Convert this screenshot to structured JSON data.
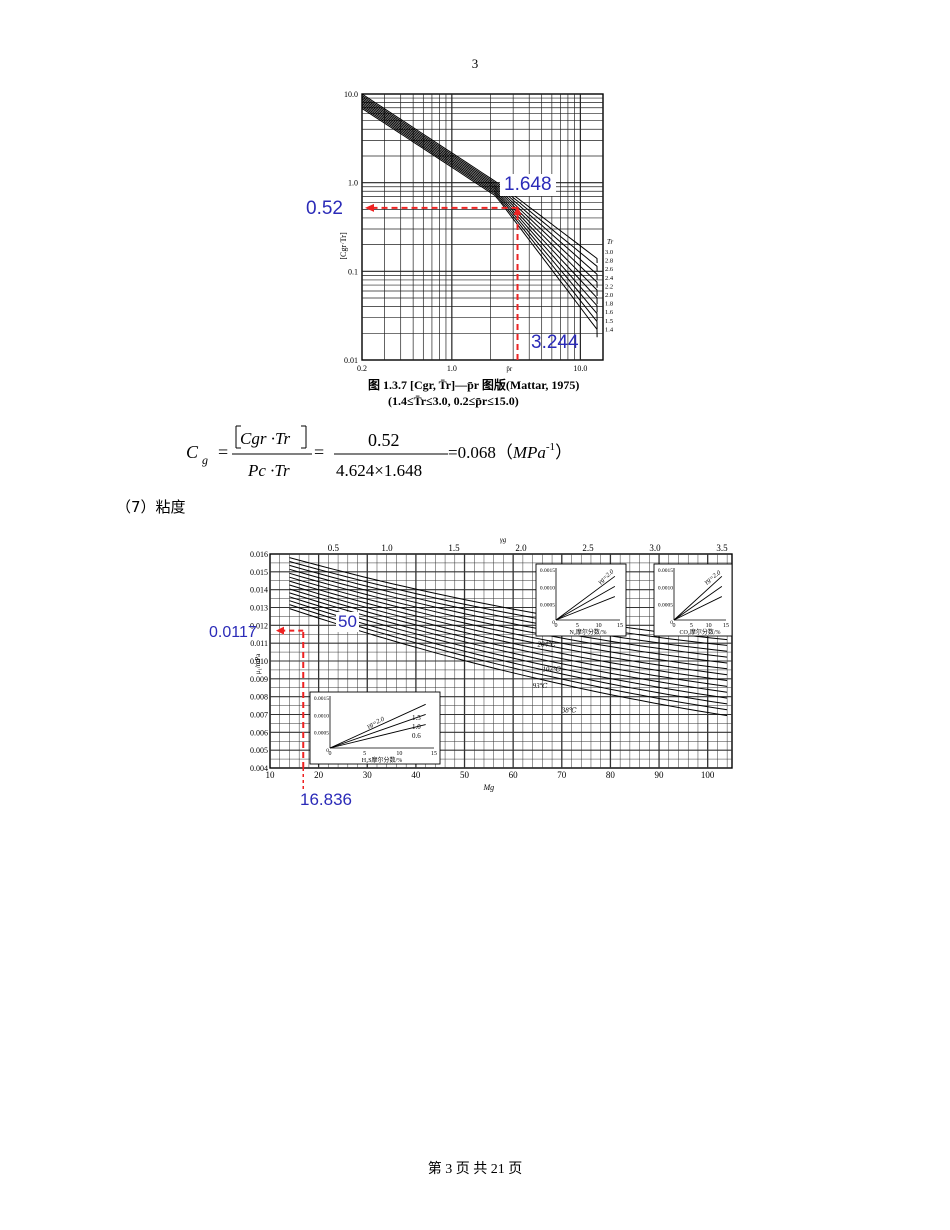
{
  "page_number": "3",
  "footer": "第 3 页 共 21 页",
  "chart1": {
    "y_ticks": [
      "10.0",
      "1.0",
      "0.1",
      "0.01"
    ],
    "x_ticks": [
      "0.2",
      "1.0",
      "10.0"
    ],
    "ylabel": "[Cgr·Tr]",
    "xlabel": "p̄r",
    "tr_header": "Tr",
    "tr_values": [
      "3.0",
      "2.8",
      "2.6",
      "2.4",
      "2.2",
      "2.0",
      "1.8",
      "1.6",
      "1.5",
      "1.4"
    ],
    "caption_line1": "图 1.3.7  [Cgr, T̄r]—p̄r 图版(Mattar, 1975)",
    "caption_line2": "(1.4≤T̄r≤3.0, 0.2≤p̄r≤15.0)",
    "ann_y": "0.52",
    "ann_tr": "1.648",
    "ann_x": "3.244"
  },
  "formula": {
    "lhs": "C",
    "lhs_sub": "g",
    "num_top": "Cgr ·Tr",
    "den_top": "Pc ·Tr",
    "num_value": "0.52",
    "den_value": "4.624×1.648",
    "result": "=0.068",
    "unit": "MPa",
    "unit_exp": "-1"
  },
  "section_heading": "（7）粘度",
  "chart2": {
    "top_ticks": [
      "0.5",
      "1.0",
      "1.5",
      "2.0",
      "2.5",
      "3.0",
      "3.5"
    ],
    "top_label": "γg",
    "y_ticks": [
      "0.016",
      "0.015",
      "0.014",
      "0.013",
      "0.012",
      "0.011",
      "0.010",
      "0.009",
      "0.008",
      "0.007",
      "0.006",
      "0.005",
      "0.004"
    ],
    "x_ticks": [
      "10",
      "20",
      "30",
      "40",
      "50",
      "60",
      "70",
      "80",
      "90",
      "100"
    ],
    "xlabel": "Mg",
    "ylabel": "μ₁/mPa",
    "temp_labels": [
      "204℃",
      "107℃",
      "93℃",
      "38℃"
    ],
    "inset_n2": "N₂摩尔分数/%",
    "inset_co2": "CO₂摩尔分数/%",
    "inset_h2s": "H₂S摩尔分数/%",
    "inset_ylabel": "Δμ/(mPa·s)",
    "inset_gamma": "γg=2.0",
    "inset_ticks_y": [
      "0.0015",
      "0.0010",
      "0.0005",
      "0"
    ],
    "inset_ticks_x": [
      "0",
      "5",
      "10",
      "15"
    ],
    "inset_curves": [
      "1.5",
      "1.0",
      "0.6"
    ],
    "ann_y": "0.0117",
    "ann_temp": "50",
    "ann_x": "16.836"
  }
}
